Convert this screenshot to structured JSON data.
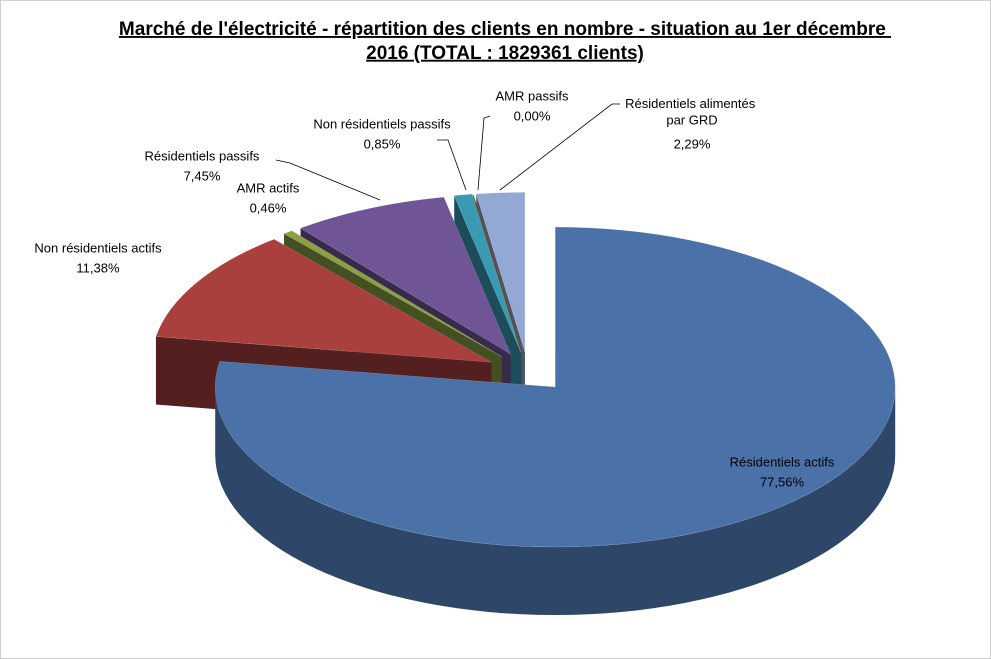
{
  "chart_data": {
    "type": "pie",
    "title": "Marché de l'électricité - répartition des clients en nombre - situation au 1er décembre 2016 (TOTAL : 1829361 clients)",
    "categories": [
      "Résidentiels actifs",
      "Non résidentiels actifs",
      "AMR actifs",
      "Résidentiels passifs",
      "Non résidentiels passifs",
      "AMR passifs",
      "Résidentiels alimentés par GRD"
    ],
    "values": [
      77.56,
      11.38,
      0.46,
      7.45,
      0.85,
      0.0,
      2.29
    ],
    "value_labels": [
      "77,56%",
      "11,38%",
      "0,46%",
      "7,45%",
      "0,85%",
      "0,00%",
      "2,29%"
    ],
    "colors": [
      "#4a72a8",
      "#a9403d",
      "#8aa043",
      "#6f5596",
      "#3a9ab4",
      "#e28a2b",
      "#93a9d4"
    ],
    "three_d": true,
    "exploded": true
  }
}
